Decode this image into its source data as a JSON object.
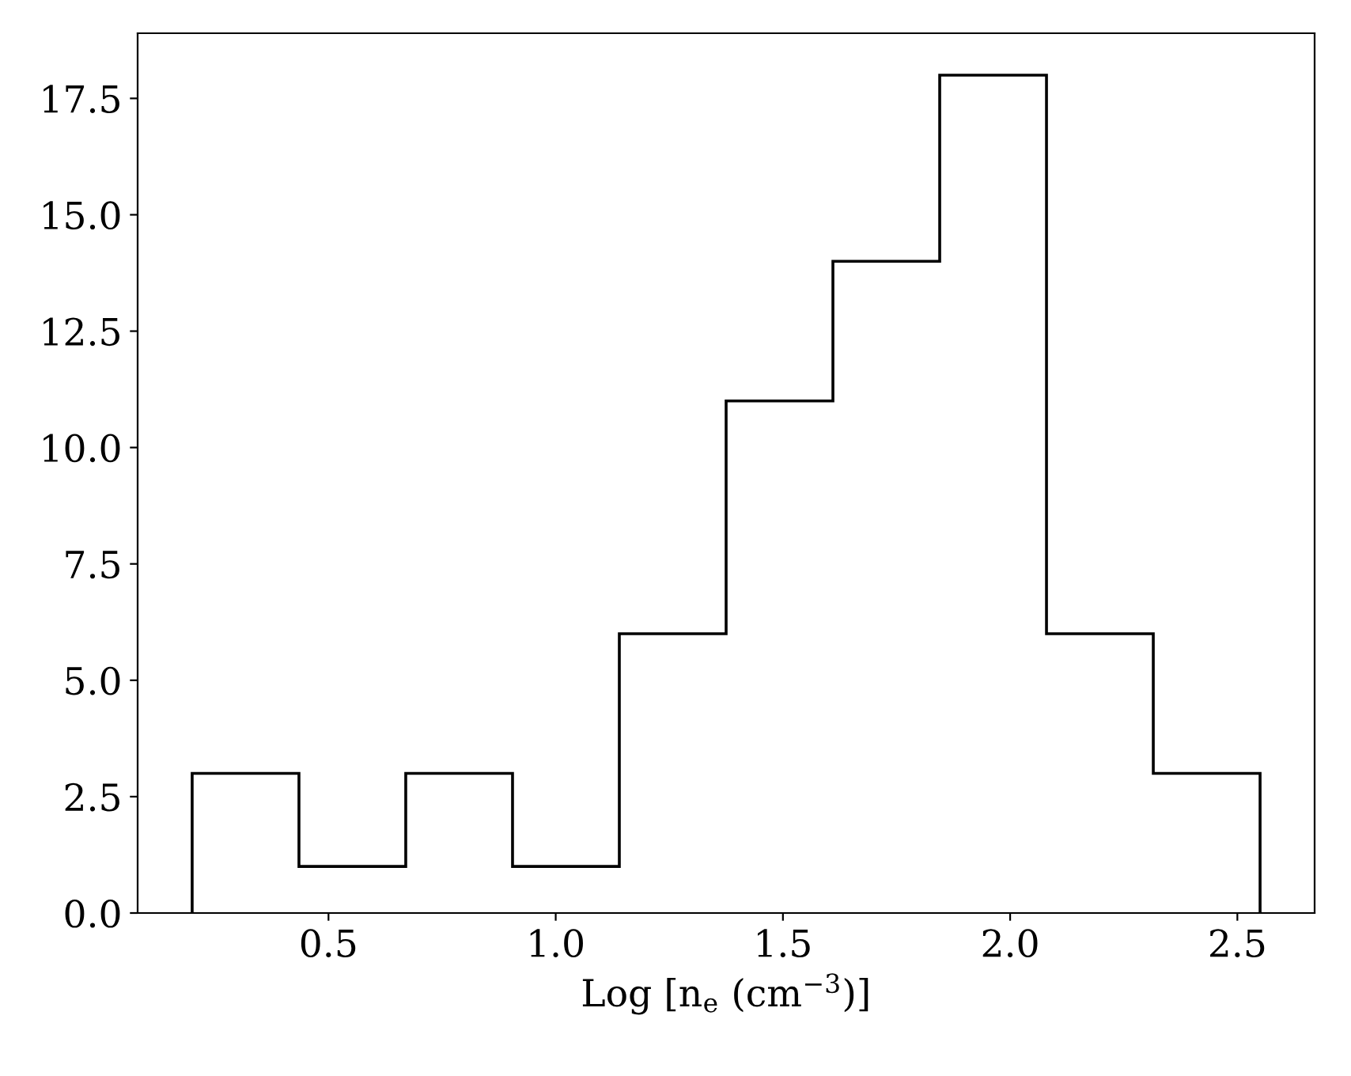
{
  "chart_data": {
    "type": "histogram",
    "xlabel": "Log [n$_{e}$ (cm$^{−3}$)]",
    "bins": [
      0.2,
      0.435,
      0.67,
      0.905,
      1.14,
      1.375,
      1.61,
      1.845,
      2.08,
      2.315,
      2.55
    ],
    "values": [
      3,
      1,
      3,
      1,
      6,
      11,
      14,
      18,
      6,
      3
    ],
    "color": "#000000",
    "xlim": [
      0.08,
      2.67
    ],
    "xticks": [
      0.5,
      {
        "value": 1,
        "label": "1.0"
      },
      1.5,
      {
        "value": 2,
        "label": "2.0"
      },
      2.5
    ],
    "ylim": [
      0,
      18.9
    ],
    "yticks": [
      {
        "value": 0,
        "label": "0.0"
      },
      2.5,
      {
        "value": 5,
        "label": "5.0"
      },
      7.5,
      {
        "value": 10,
        "label": "10.0"
      },
      12.5,
      {
        "value": 15,
        "label": "15.0"
      },
      17.5
    ],
    "grid": false,
    "legend": false
  }
}
